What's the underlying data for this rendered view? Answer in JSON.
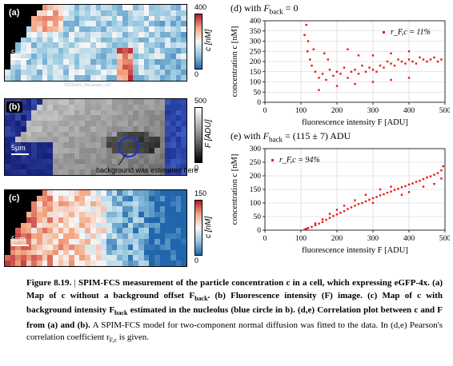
{
  "panels": {
    "a": {
      "label": "(a)",
      "scalebar": "5μm",
      "cbar_max": "400",
      "cbar_min": "0",
      "cbar_unit": "c [nM]"
    },
    "b": {
      "label": "(b)",
      "scalebar": "5μm",
      "cbar_max": "500",
      "cbar_min": "0",
      "cbar_unit": "F [ADU]",
      "annotation": "background was estimated here"
    },
    "c": {
      "label": "(c)",
      "scalebar": "5μm",
      "cbar_max": "150",
      "cbar_min": "0",
      "cbar_unit": "c [nM]"
    }
  },
  "watermark": "20130901_HeLaeater_x07",
  "colors": {
    "scatter": "#ee1111",
    "circle": "#1a2fd6",
    "heat_low": "#2166ac",
    "heat_high": "#d6604d"
  },
  "chart_data": [
    {
      "type": "scatter",
      "panel_title_prefix": "(d) with ",
      "panel_title_var": "F",
      "panel_title_sub": "back",
      "panel_title_rest": " = 0",
      "xlabel": "fluorescence intensity F [ADU]",
      "ylabel": "concentration c [nM]",
      "xlim": [
        0,
        500
      ],
      "ylim": [
        0,
        400
      ],
      "xticks": [
        0,
        100,
        200,
        300,
        400,
        500
      ],
      "yticks": [
        0,
        50,
        100,
        150,
        200,
        250,
        300,
        350,
        400
      ],
      "grid": true,
      "annotation": "r_F,c = 11%",
      "annotation_pos": "top-right",
      "series": [
        {
          "description": "concentration approximately independent of intensity",
          "points": [
            [
              110,
              330
            ],
            [
              115,
              380
            ],
            [
              118,
              250
            ],
            [
              120,
              300
            ],
            [
              125,
              210
            ],
            [
              130,
              180
            ],
            [
              135,
              260
            ],
            [
              140,
              150
            ],
            [
              150,
              120
            ],
            [
              160,
              140
            ],
            [
              170,
              110
            ],
            [
              180,
              160
            ],
            [
              190,
              130
            ],
            [
              200,
              150
            ],
            [
              210,
              140
            ],
            [
              220,
              170
            ],
            [
              230,
              120
            ],
            [
              240,
              150
            ],
            [
              250,
              160
            ],
            [
              260,
              140
            ],
            [
              270,
              180
            ],
            [
              280,
              150
            ],
            [
              290,
              170
            ],
            [
              300,
              160
            ],
            [
              310,
              150
            ],
            [
              320,
              180
            ],
            [
              330,
              170
            ],
            [
              340,
              200
            ],
            [
              350,
              190
            ],
            [
              360,
              180
            ],
            [
              370,
              210
            ],
            [
              380,
              200
            ],
            [
              390,
              190
            ],
            [
              400,
              210
            ],
            [
              410,
              200
            ],
            [
              420,
              190
            ],
            [
              430,
              220
            ],
            [
              440,
              210
            ],
            [
              450,
              200
            ],
            [
              460,
              210
            ],
            [
              470,
              220
            ],
            [
              480,
              200
            ],
            [
              490,
              210
            ],
            [
              165,
              240
            ],
            [
              175,
              210
            ],
            [
              230,
              260
            ],
            [
              260,
              230
            ],
            [
              300,
              230
            ],
            [
              350,
              240
            ],
            [
              400,
              250
            ],
            [
              150,
              60
            ],
            [
              200,
              80
            ],
            [
              250,
              90
            ],
            [
              300,
              100
            ],
            [
              350,
              110
            ],
            [
              400,
              120
            ]
          ]
        }
      ]
    },
    {
      "type": "scatter",
      "panel_title_prefix": "(e) with ",
      "panel_title_var": "F",
      "panel_title_sub": "back",
      "panel_title_rest": " = (115 ± 7) ADU",
      "xlabel": "fluorescence intensity F [ADU]",
      "ylabel": "concentration c [nM]",
      "xlim": [
        0,
        500
      ],
      "ylim": [
        0,
        300
      ],
      "xticks": [
        0,
        100,
        200,
        300,
        400,
        500
      ],
      "yticks": [
        0,
        50,
        100,
        150,
        200,
        250,
        300
      ],
      "grid": true,
      "annotation": "r_F,c = 94%",
      "annotation_pos": "top-left",
      "series": [
        {
          "description": "concentration increasing with intensity",
          "points": [
            [
              110,
              2
            ],
            [
              115,
              5
            ],
            [
              120,
              8
            ],
            [
              130,
              12
            ],
            [
              140,
              18
            ],
            [
              150,
              24
            ],
            [
              160,
              30
            ],
            [
              170,
              38
            ],
            [
              180,
              45
            ],
            [
              190,
              52
            ],
            [
              200,
              58
            ],
            [
              210,
              64
            ],
            [
              220,
              70
            ],
            [
              230,
              78
            ],
            [
              240,
              84
            ],
            [
              250,
              90
            ],
            [
              260,
              96
            ],
            [
              270,
              100
            ],
            [
              280,
              106
            ],
            [
              290,
              112
            ],
            [
              300,
              118
            ],
            [
              310,
              122
            ],
            [
              320,
              128
            ],
            [
              330,
              132
            ],
            [
              340,
              138
            ],
            [
              350,
              142
            ],
            [
              360,
              148
            ],
            [
              370,
              152
            ],
            [
              380,
              158
            ],
            [
              390,
              162
            ],
            [
              400,
              168
            ],
            [
              410,
              172
            ],
            [
              420,
              178
            ],
            [
              430,
              182
            ],
            [
              440,
              188
            ],
            [
              450,
              194
            ],
            [
              460,
              198
            ],
            [
              470,
              204
            ],
            [
              480,
              210
            ],
            [
              490,
              220
            ],
            [
              495,
              235
            ],
            [
              490,
              190
            ],
            [
              470,
              170
            ],
            [
              440,
              160
            ],
            [
              400,
              140
            ],
            [
              380,
              130
            ],
            [
              350,
              160
            ],
            [
              320,
              150
            ],
            [
              300,
              100
            ],
            [
              280,
              130
            ],
            [
              250,
              110
            ],
            [
              220,
              90
            ],
            [
              200,
              75
            ],
            [
              180,
              60
            ],
            [
              160,
              40
            ],
            [
              140,
              25
            ]
          ]
        }
      ]
    }
  ],
  "caption": {
    "figure_label": "Figure 8.19.",
    "sep": " | ",
    "bold_text": "SPIM-FCS measurement of the particle concentration c in a cell, which expressing eGFP-4x. (a) Map of c without a background offset F",
    "bold_sub1": "back",
    "bold_text2": ". (b) Fluorescence intensity (F) image. (c) Map of c with background intensity F",
    "bold_sub2": "back",
    "bold_text3": " estimated in the nucleolus (blue circle in b). (d,e) Correlation plot between c and F from (a) and (b).",
    "normal_text": " A SPIM-FCS model for two-component normal diffusion was fitted to the data. In (d,e) Pearson's correlation coefficient r",
    "normal_sub": "F,c",
    "normal_end": " is given."
  }
}
